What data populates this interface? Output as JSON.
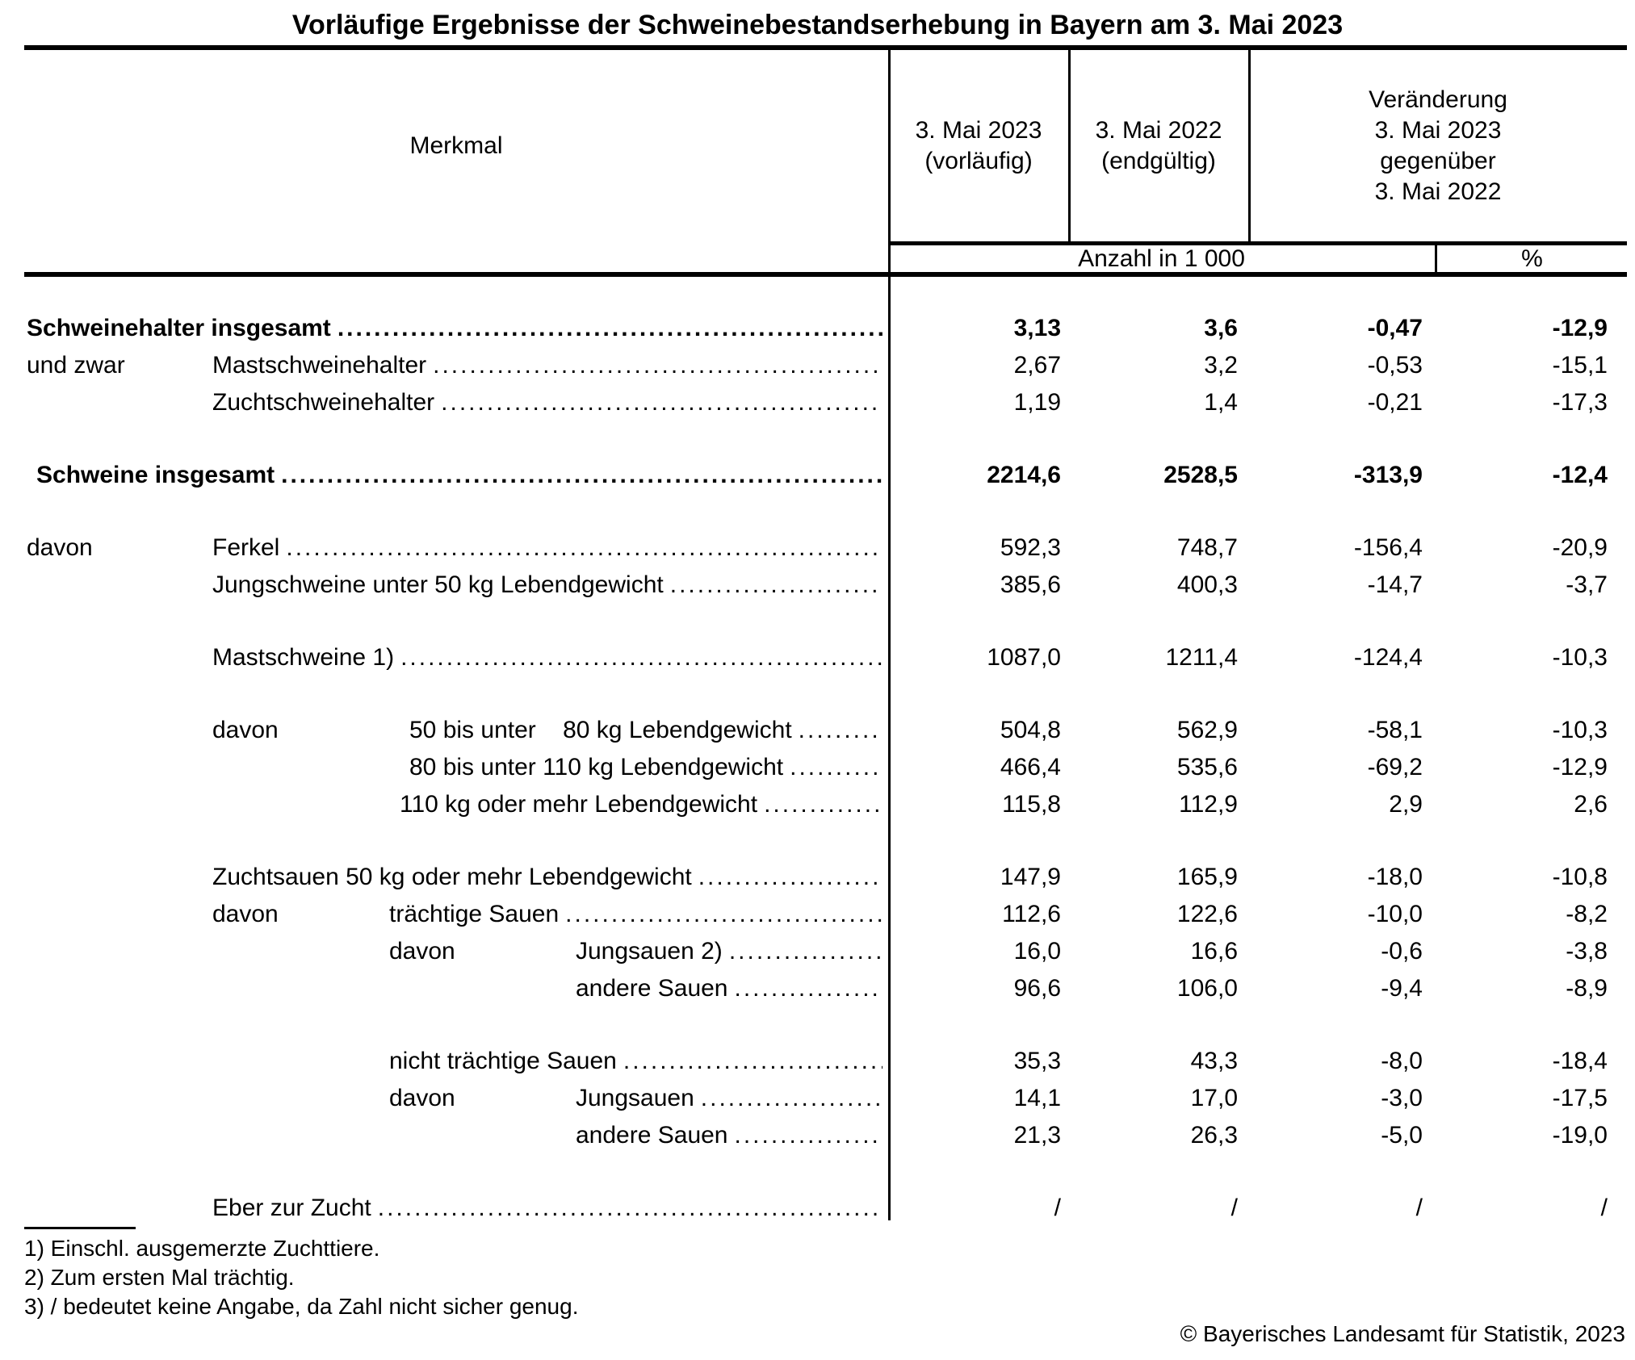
{
  "title": "Vorläufige Ergebnisse der Schweinebestandserhebung in Bayern am 3. Mai 2023",
  "header": {
    "merkmal": "Merkmal",
    "col_2023": [
      "3. Mai 2023",
      "(vorläufig)"
    ],
    "col_2022": [
      "3. Mai 2022",
      "(endgültig)"
    ],
    "col_change": [
      "Veränderung",
      "3. Mai 2023",
      "gegenüber",
      "3. Mai 2022"
    ],
    "unit_count": "Anzahl in 1 000",
    "unit_percent": "%"
  },
  "rows": [
    {
      "label": "Schweinehalter insgesamt",
      "level": "0",
      "bold": true,
      "group_break": false,
      "values": [
        "3,13",
        "3,6",
        "-0,47",
        "-12,9"
      ]
    },
    {
      "prefix": "und zwar",
      "prefix_level": "0",
      "label": "Mastschweinehalter",
      "level": "1",
      "bold": false,
      "group_break": false,
      "values": [
        "2,67",
        "3,2",
        "-0,53",
        "-15,1"
      ]
    },
    {
      "label": "Zuchtschweinehalter",
      "level": "1",
      "bold": false,
      "group_break": false,
      "values": [
        "1,19",
        "1,4",
        "-0,21",
        "-17,3"
      ]
    },
    {
      "label": "Schweine insgesamt",
      "level": "0b",
      "bold": true,
      "group_break": true,
      "values": [
        "2214,6",
        "2528,5",
        "-313,9",
        "-12,4"
      ]
    },
    {
      "prefix": "davon",
      "prefix_level": "0",
      "label": "Ferkel",
      "level": "1",
      "bold": false,
      "group_break": true,
      "values": [
        "592,3",
        "748,7",
        "-156,4",
        "-20,9"
      ]
    },
    {
      "label": "Jungschweine unter 50 kg Lebendgewicht",
      "level": "1",
      "bold": false,
      "group_break": false,
      "values": [
        "385,6",
        "400,3",
        "-14,7",
        "-3,7"
      ]
    },
    {
      "label": "Mastschweine 1)",
      "level": "1",
      "bold": false,
      "group_break": true,
      "values": [
        "1087,0",
        "1211,4",
        "-124,4",
        "-10,3"
      ]
    },
    {
      "prefix": "davon",
      "prefix_level": "1",
      "label": "50 bis unter    80 kg Lebendgewicht",
      "level": "2a",
      "bold": false,
      "group_break": true,
      "values": [
        "504,8",
        "562,9",
        "-58,1",
        "-10,3"
      ]
    },
    {
      "label": "80 bis unter 110 kg Lebendgewicht",
      "level": "2a",
      "bold": false,
      "group_break": false,
      "values": [
        "466,4",
        "535,6",
        "-69,2",
        "-12,9"
      ]
    },
    {
      "label": "110 kg oder mehr Lebendgewicht",
      "level": "2b",
      "bold": false,
      "group_break": false,
      "values": [
        "115,8",
        "112,9",
        "2,9",
        "2,6"
      ]
    },
    {
      "label": "Zuchtsauen 50 kg oder mehr Lebendgewicht",
      "level": "1",
      "bold": false,
      "group_break": true,
      "values": [
        "147,9",
        "165,9",
        "-18,0",
        "-10,8"
      ]
    },
    {
      "prefix": "davon",
      "prefix_level": "1",
      "label": "trächtige Sauen",
      "level": "2",
      "bold": false,
      "group_break": false,
      "values": [
        "112,6",
        "122,6",
        "-10,0",
        "-8,2"
      ]
    },
    {
      "prefix": "davon",
      "prefix_level": "2",
      "label": "Jungsauen 2)",
      "level": "3",
      "bold": false,
      "group_break": false,
      "values": [
        "16,0",
        "16,6",
        "-0,6",
        "-3,8"
      ]
    },
    {
      "label": "andere Sauen",
      "level": "3",
      "bold": false,
      "group_break": false,
      "values": [
        "96,6",
        "106,0",
        "-9,4",
        "-8,9"
      ]
    },
    {
      "label": "nicht trächtige Sauen",
      "level": "2",
      "bold": false,
      "group_break": true,
      "values": [
        "35,3",
        "43,3",
        "-8,0",
        "-18,4"
      ]
    },
    {
      "prefix": "davon",
      "prefix_level": "2",
      "label": "Jungsauen",
      "level": "3",
      "bold": false,
      "group_break": false,
      "values": [
        "14,1",
        "17,0",
        "-3,0",
        "-17,5"
      ]
    },
    {
      "label": "andere Sauen",
      "level": "3",
      "bold": false,
      "group_break": false,
      "values": [
        "21,3",
        "26,3",
        "-5,0",
        "-19,0"
      ]
    },
    {
      "label": "Eber zur Zucht",
      "level": "1",
      "bold": false,
      "group_break": true,
      "values": [
        "/",
        "/",
        "/",
        "/"
      ]
    }
  ],
  "footnotes": [
    "1) Einschl. ausgemerzte Zuchttiere.",
    "2) Zum ersten Mal trächtig.",
    "3) / bedeutet keine Angabe, da Zahl nicht sicher genug."
  ],
  "copyright": "© Bayerisches Landesamt für Statistik, 2023"
}
